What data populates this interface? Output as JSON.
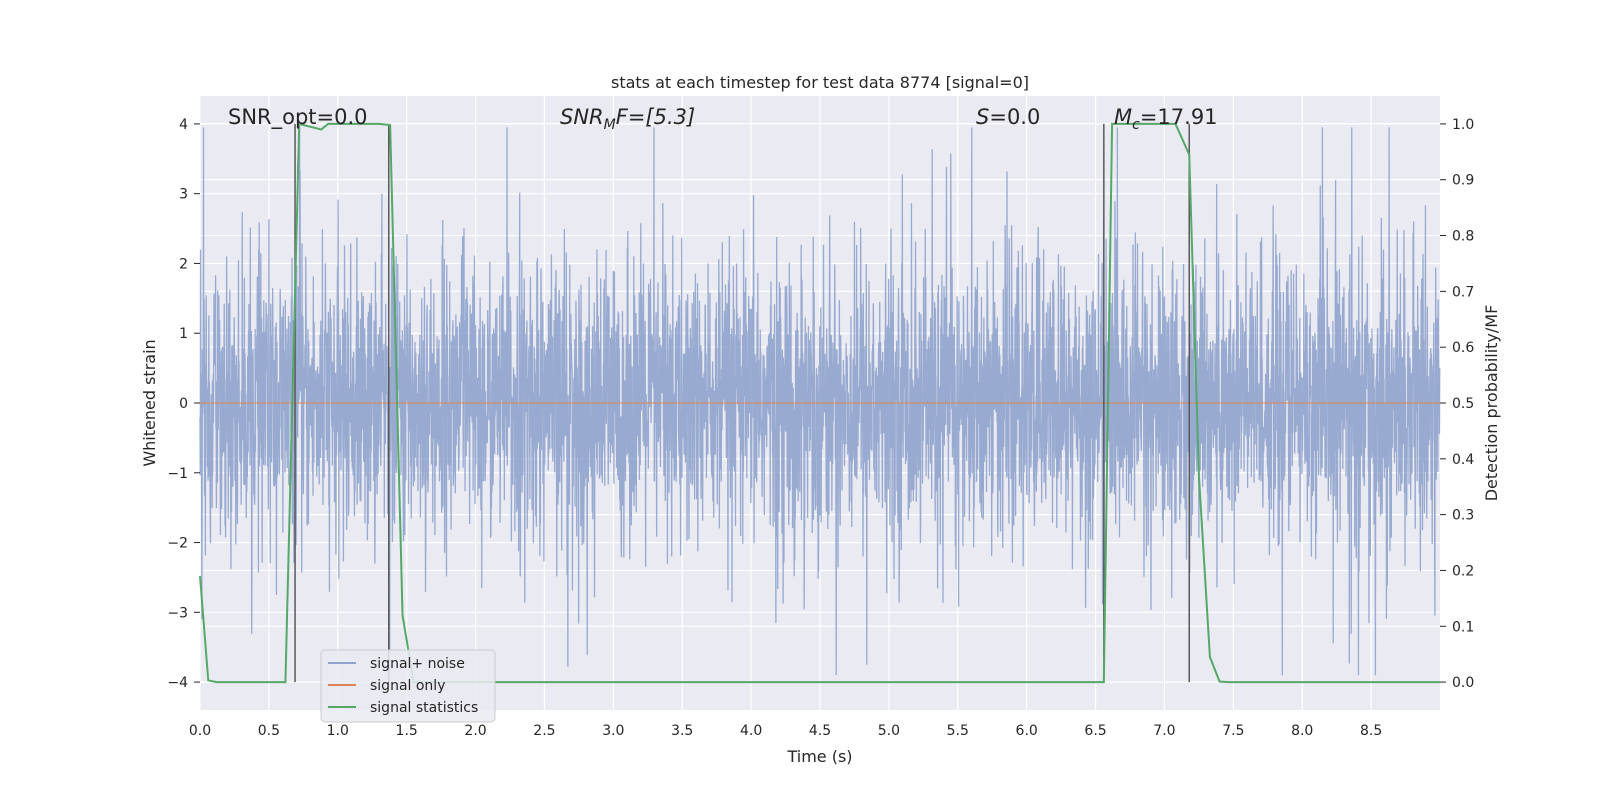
{
  "chart_data": {
    "type": "line",
    "title": "stats at each timestep for test data 8774 [signal=0]",
    "xlabel": "Time (s)",
    "ylabel_left": "Whitened strain",
    "ylabel_right": "Detection probability/MF",
    "xlim": [
      0.0,
      9.0
    ],
    "ylim_left": [
      -4.4,
      4.4
    ],
    "ylim_right": [
      -0.05,
      1.05
    ],
    "x_ticks": [
      "0.0",
      "0.5",
      "1.0",
      "1.5",
      "2.0",
      "2.5",
      "3.0",
      "3.5",
      "4.0",
      "4.5",
      "5.0",
      "5.5",
      "6.0",
      "6.5",
      "7.0",
      "7.5",
      "8.0",
      "8.5"
    ],
    "y_ticks_left": [
      "4",
      "3",
      "2",
      "1",
      "0",
      "−1",
      "−2",
      "−3",
      "−4"
    ],
    "y_ticks_right": [
      "1.0",
      "0.9",
      "0.8",
      "0.7",
      "0.6",
      "0.5",
      "0.4",
      "0.3",
      "0.2",
      "0.1",
      "0.0"
    ],
    "grid": true,
    "legend_position": "lower-left",
    "annotations": {
      "snr_opt": "SNR_opt=0.0",
      "snr_mf_main": "SNR",
      "snr_mf_sub": "M",
      "snr_mf_tail": "F=[5.3]",
      "s_main": "S",
      "s_tail": "=0.0",
      "mc_main": "M",
      "mc_sub": "c",
      "mc_tail": "=17.91"
    },
    "series": [
      {
        "name": "signal+ noise",
        "color": "#8fa3cc",
        "kind": "noise",
        "sample_rate_hz": 512,
        "core_std": 0.95
      },
      {
        "name": "signal only",
        "color": "#dd8452",
        "kind": "flat",
        "value": 0.0
      },
      {
        "name": "signal statistics",
        "color": "#55a868",
        "kind": "probability",
        "points": [
          [
            0.0,
            0.19
          ],
          [
            0.06,
            0.003
          ],
          [
            0.12,
            0.0
          ],
          [
            0.62,
            0.0
          ],
          [
            0.72,
            1.0
          ],
          [
            0.88,
            0.99
          ],
          [
            0.93,
            1.0
          ],
          [
            1.1,
            1.0
          ],
          [
            1.3,
            1.0
          ],
          [
            1.38,
            0.998
          ],
          [
            1.47,
            0.12
          ],
          [
            1.55,
            0.0
          ],
          [
            6.56,
            0.0
          ],
          [
            6.62,
            1.0
          ],
          [
            7.08,
            1.0
          ],
          [
            7.18,
            0.945
          ],
          [
            7.25,
            0.37
          ],
          [
            7.33,
            0.045
          ],
          [
            7.4,
            0.001
          ],
          [
            7.46,
            0.0
          ],
          [
            9.0,
            0.0
          ]
        ]
      }
    ],
    "vertical_markers_x": [
      0.69,
      1.37,
      6.56,
      7.18
    ],
    "marker_color": "#595959"
  }
}
